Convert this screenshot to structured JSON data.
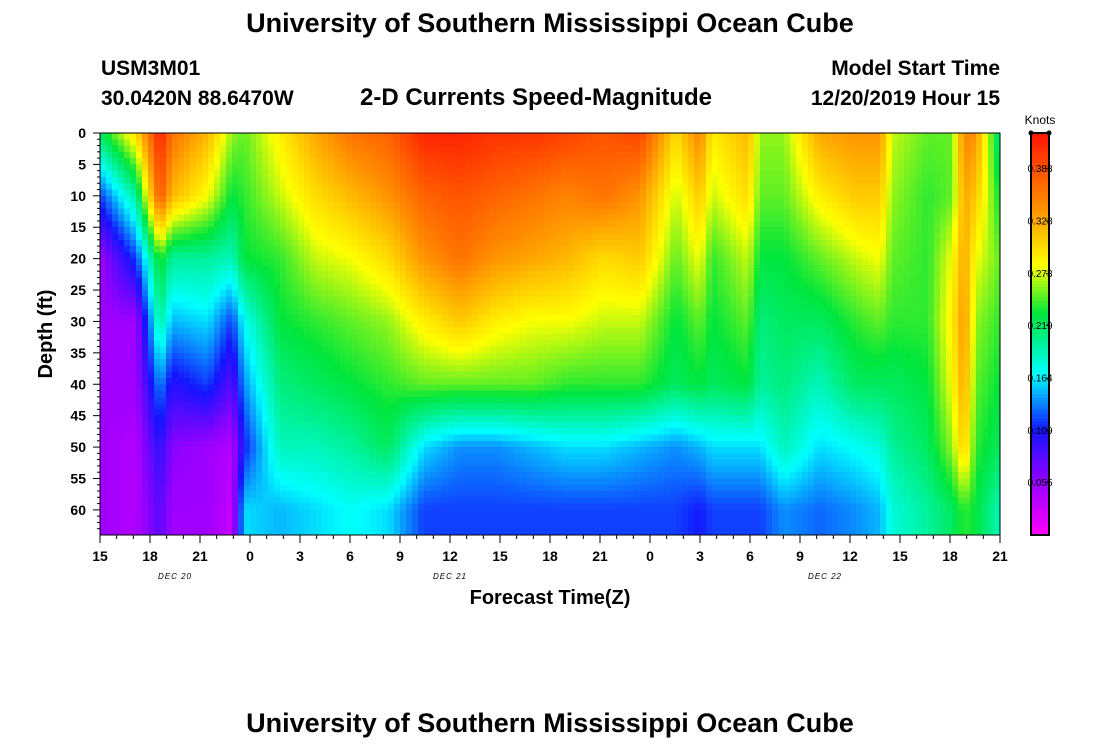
{
  "header": {
    "title": "University of Southern Mississippi Ocean Cube",
    "station_id": "USM3M01",
    "coordinates": "30.0420N 88.6470W",
    "chart_subtitle": "2-D Currents Speed-Magnitude",
    "model_start_label": "Model Start Time",
    "model_start_value": "12/20/2019 Hour 15"
  },
  "footer": {
    "title": "University of Southern Mississippi Ocean Cube"
  },
  "chart_data": {
    "type": "heatmap",
    "title": "2-D Currents Speed-Magnitude",
    "xlabel": "Forecast Time(Z)",
    "ylabel": "Depth (ft)",
    "x_ticks": [
      "15",
      "18",
      "21",
      "0",
      "3",
      "6",
      "9",
      "12",
      "15",
      "18",
      "21",
      "0",
      "3",
      "6",
      "9",
      "12",
      "15",
      "18",
      "21"
    ],
    "date_labels": [
      {
        "text": "DEC 20",
        "tick_index": 1.5
      },
      {
        "text": "DEC 21",
        "tick_index": 7
      },
      {
        "text": "DEC 22",
        "tick_index": 14.5
      }
    ],
    "y_ticks": [
      "0",
      "5",
      "10",
      "15",
      "20",
      "25",
      "30",
      "35",
      "40",
      "45",
      "50",
      "55",
      "60"
    ],
    "ylim": [
      0,
      64
    ],
    "colorbar": {
      "unit": "Knots",
      "ticks": [
        "0.383",
        "0.328",
        "0.273",
        "0.219",
        "0.164",
        "0.109",
        "0.055"
      ],
      "range": [
        0.0,
        0.42
      ]
    },
    "hours": [
      15,
      18,
      20,
      21,
      24,
      26,
      27,
      30,
      33,
      36,
      39,
      42,
      45,
      48,
      51,
      54,
      57,
      60,
      63,
      65,
      66,
      69,
      70,
      72,
      75,
      78,
      80,
      81,
      84,
      86,
      87,
      88,
      90
    ],
    "depths_ft": [
      0,
      10,
      20,
      30,
      40,
      50,
      60,
      64
    ],
    "speed_knots": [
      [
        0.22,
        0.12,
        0.05,
        0.05,
        0.05,
        0.05,
        0.05,
        0.05
      ],
      [
        0.3,
        0.2,
        0.12,
        0.05,
        0.05,
        0.04,
        0.04,
        0.04
      ],
      [
        0.41,
        0.38,
        0.24,
        0.2,
        0.14,
        0.1,
        0.08,
        0.08
      ],
      [
        0.36,
        0.32,
        0.2,
        0.15,
        0.1,
        0.06,
        0.05,
        0.05
      ],
      [
        0.32,
        0.28,
        0.2,
        0.16,
        0.12,
        0.05,
        0.05,
        0.05
      ],
      [
        0.26,
        0.23,
        0.19,
        0.12,
        0.08,
        0.04,
        0.03,
        0.03
      ],
      [
        0.25,
        0.24,
        0.23,
        0.17,
        0.14,
        0.11,
        0.16,
        0.16
      ],
      [
        0.29,
        0.27,
        0.24,
        0.23,
        0.21,
        0.19,
        0.15,
        0.15
      ],
      [
        0.33,
        0.3,
        0.27,
        0.24,
        0.22,
        0.19,
        0.16,
        0.16
      ],
      [
        0.36,
        0.32,
        0.28,
        0.25,
        0.23,
        0.2,
        0.17,
        0.17
      ],
      [
        0.37,
        0.34,
        0.3,
        0.26,
        0.24,
        0.22,
        0.16,
        0.16
      ],
      [
        0.41,
        0.37,
        0.34,
        0.29,
        0.25,
        0.16,
        0.12,
        0.12
      ],
      [
        0.41,
        0.38,
        0.36,
        0.31,
        0.25,
        0.14,
        0.12,
        0.12
      ],
      [
        0.4,
        0.37,
        0.34,
        0.29,
        0.25,
        0.14,
        0.12,
        0.12
      ],
      [
        0.4,
        0.36,
        0.33,
        0.28,
        0.25,
        0.15,
        0.12,
        0.12
      ],
      [
        0.39,
        0.35,
        0.32,
        0.28,
        0.24,
        0.16,
        0.12,
        0.12
      ],
      [
        0.38,
        0.36,
        0.3,
        0.27,
        0.24,
        0.16,
        0.12,
        0.12
      ],
      [
        0.39,
        0.34,
        0.31,
        0.27,
        0.24,
        0.15,
        0.12,
        0.12
      ],
      [
        0.3,
        0.27,
        0.25,
        0.23,
        0.22,
        0.14,
        0.12,
        0.12
      ],
      [
        0.35,
        0.31,
        0.28,
        0.25,
        0.23,
        0.15,
        0.11,
        0.11
      ],
      [
        0.29,
        0.27,
        0.24,
        0.23,
        0.22,
        0.16,
        0.12,
        0.12
      ],
      [
        0.32,
        0.3,
        0.27,
        0.25,
        0.23,
        0.16,
        0.12,
        0.12
      ],
      [
        0.26,
        0.25,
        0.23,
        0.21,
        0.2,
        0.16,
        0.12,
        0.12
      ],
      [
        0.26,
        0.25,
        0.23,
        0.22,
        0.21,
        0.19,
        0.14,
        0.14
      ],
      [
        0.33,
        0.29,
        0.25,
        0.22,
        0.19,
        0.16,
        0.13,
        0.13
      ],
      [
        0.34,
        0.31,
        0.27,
        0.24,
        0.22,
        0.17,
        0.14,
        0.14
      ],
      [
        0.34,
        0.31,
        0.28,
        0.25,
        0.22,
        0.18,
        0.15,
        0.15
      ],
      [
        0.27,
        0.26,
        0.25,
        0.24,
        0.22,
        0.2,
        0.18,
        0.18
      ],
      [
        0.25,
        0.24,
        0.24,
        0.24,
        0.23,
        0.22,
        0.2,
        0.2
      ],
      [
        0.25,
        0.25,
        0.28,
        0.29,
        0.28,
        0.26,
        0.22,
        0.22
      ],
      [
        0.35,
        0.33,
        0.33,
        0.34,
        0.33,
        0.31,
        0.24,
        0.24
      ],
      [
        0.34,
        0.31,
        0.28,
        0.26,
        0.25,
        0.24,
        0.23,
        0.23
      ],
      [
        0.2,
        0.23,
        0.25,
        0.24,
        0.23,
        0.22,
        0.19,
        0.19
      ]
    ]
  }
}
